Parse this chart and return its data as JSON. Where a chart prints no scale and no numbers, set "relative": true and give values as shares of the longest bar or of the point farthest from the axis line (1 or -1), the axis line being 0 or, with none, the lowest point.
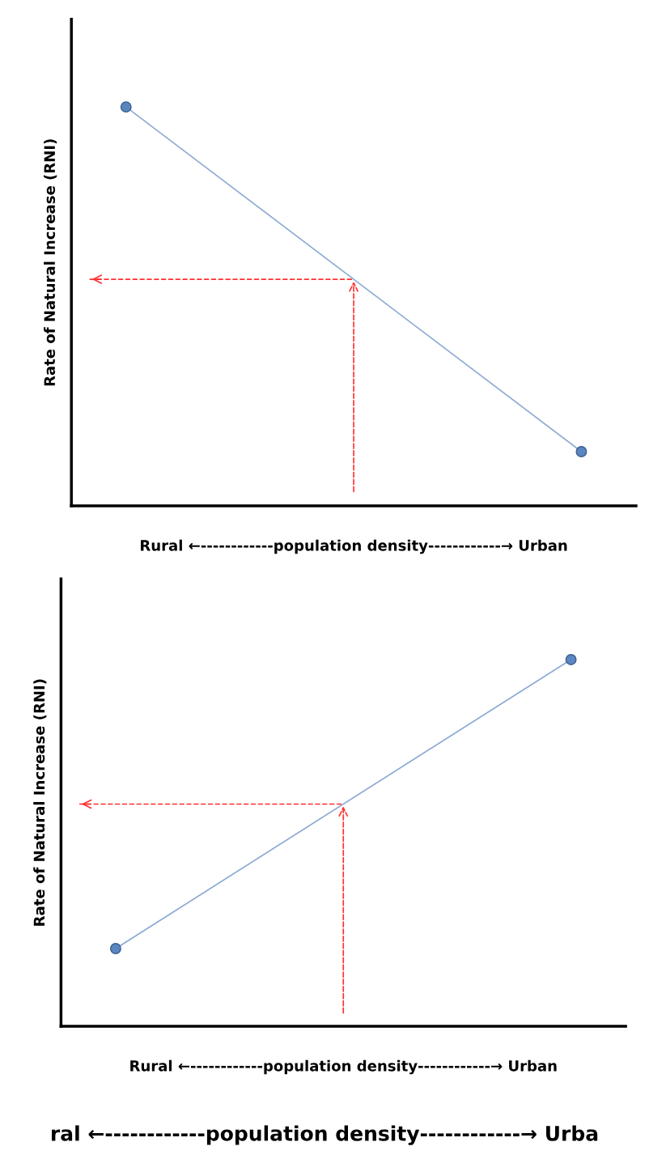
{
  "chart_data": [
    {
      "type": "line",
      "relative": true,
      "categories": [
        null,
        null
      ],
      "ylabel": "Rate of Natural Increase (RNI)",
      "xlabel": "Rural ←------------population density------------→ Urban",
      "marker": "circle",
      "line_style": "solid",
      "series": [
        {
          "color": "#5b86c0",
          "values": [
            1,
            0.136
          ]
        }
      ],
      "ref_lines": [
        {
          "axis": "y",
          "value": 0.568,
          "color": "#ff3030",
          "line_style": "dashed"
        }
      ]
    },
    {
      "type": "line",
      "relative": true,
      "categories": [
        null,
        null
      ],
      "ylabel": "Rate of Natural Increase (RNI)",
      "xlabel": "Rural ←------------population density------------→ Urban",
      "marker": "circle",
      "line_style": "solid",
      "series": [
        {
          "color": "#5b86c0",
          "values": [
            0.212,
            1
          ]
        }
      ],
      "ref_lines": [
        {
          "axis": "y",
          "value": 0.606,
          "color": "#ff3030",
          "line_style": "dashed"
        }
      ],
      "annotations": [
        "ral ←------------population density------------→ Urba"
      ]
    }
  ]
}
